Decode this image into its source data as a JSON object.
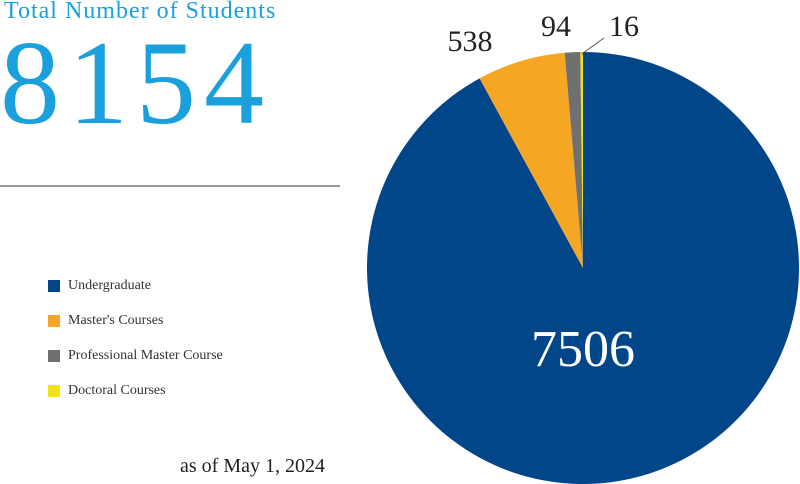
{
  "header": {
    "total_label": "Total Number of Students",
    "total_value": "8154"
  },
  "footer": {
    "as_of": "as of May 1, 2024"
  },
  "chart_data": {
    "type": "pie",
    "title": "",
    "slices": [
      {
        "label": "Undergraduate",
        "value": 7506,
        "color": "#02468a"
      },
      {
        "label": "Master's Courses",
        "value": 538,
        "color": "#f5a623"
      },
      {
        "label": "Professional Master Course",
        "value": 94,
        "color": "#707070"
      },
      {
        "label": "Doctoral Courses",
        "value": 16,
        "color": "#f2e21a"
      }
    ],
    "start": "12 o'clock",
    "direction": "clockwise",
    "legend_position": "left"
  }
}
